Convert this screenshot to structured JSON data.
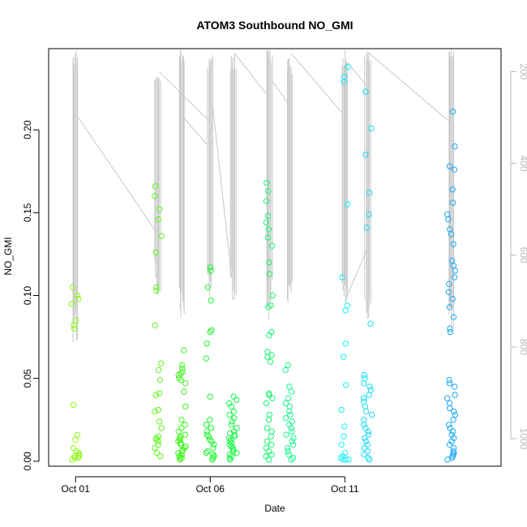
{
  "chart_data": {
    "type": "scatter",
    "title": "ATOM3 Southbound NO_GMI",
    "xlabel": "Date",
    "ylabel": "NO_GMI",
    "x_axis": {
      "type": "date-days",
      "range_days_from_oct01": [
        -1.0,
        15.8
      ],
      "ticks": [
        {
          "day": 0,
          "label": "Oct 01"
        },
        {
          "day": 5,
          "label": "Oct 06"
        },
        {
          "day": 10,
          "label": "Oct 11"
        }
      ]
    },
    "y_axis": {
      "range": [
        -0.003,
        0.249
      ],
      "ticks": [
        0.0,
        0.05,
        0.1,
        0.15,
        0.2
      ],
      "tick_labels": [
        "0.00",
        "0.05",
        "0.10",
        "0.15",
        "0.20"
      ]
    },
    "y2_axis": {
      "label_color": "#b8b8b8",
      "reversed": true,
      "range": [
        1060,
        150
      ],
      "ticks": [
        200,
        400,
        600,
        800,
        1000
      ],
      "tick_labels": [
        "200",
        "400",
        "600",
        "800",
        "1000"
      ],
      "series": "pressure profile (gray line)"
    },
    "grid": false,
    "legend": "none",
    "color_scale": "hue by day (green to blue)",
    "point_clusters": [
      {
        "day": 0.0,
        "color": "#8ff51a",
        "values": [
          0.105,
          0.1,
          0.098,
          0.095,
          0.085,
          0.082,
          0.08,
          0.034,
          0.016,
          0.013,
          0.008,
          0.006,
          0.005,
          0.004,
          0.003,
          0.003,
          0.002,
          0.002,
          0.001
        ]
      },
      {
        "day": 3.05,
        "color": "#5cf51a",
        "values": [
          0.166,
          0.16,
          0.152,
          0.146,
          0.136,
          0.126,
          0.105,
          0.103,
          0.082,
          0.059,
          0.055,
          0.049,
          0.041,
          0.04,
          0.031,
          0.03,
          0.024,
          0.02,
          0.015,
          0.014,
          0.013,
          0.012,
          0.01,
          0.008,
          0.005,
          0.003
        ]
      },
      {
        "day": 3.95,
        "color": "#3cf51a",
        "values": [
          0.067,
          0.058,
          0.056,
          0.054,
          0.053,
          0.052,
          0.05,
          0.049,
          0.047,
          0.042,
          0.033,
          0.025,
          0.022,
          0.02,
          0.018,
          0.016,
          0.015,
          0.014,
          0.013,
          0.012,
          0.011,
          0.01,
          0.009,
          0.008,
          0.007,
          0.006,
          0.005,
          0.004,
          0.003,
          0.002,
          0.002,
          0.001
        ]
      },
      {
        "day": 5.0,
        "color": "#1af52c",
        "values": [
          0.117,
          0.115,
          0.105,
          0.097,
          0.079,
          0.078,
          0.071,
          0.062,
          0.039,
          0.025,
          0.022,
          0.02,
          0.018,
          0.016,
          0.015,
          0.013,
          0.012,
          0.01,
          0.008,
          0.006,
          0.005,
          0.004,
          0.003,
          0.002,
          0.001
        ]
      },
      {
        "day": 5.85,
        "color": "#1af548",
        "values": [
          0.039,
          0.037,
          0.035,
          0.033,
          0.03,
          0.028,
          0.026,
          0.024,
          0.022,
          0.02,
          0.018,
          0.017,
          0.016,
          0.015,
          0.014,
          0.013,
          0.012,
          0.011,
          0.01,
          0.009,
          0.008,
          0.007,
          0.006,
          0.005,
          0.004,
          0.003,
          0.002,
          0.001
        ]
      },
      {
        "day": 7.2,
        "color": "#1af570",
        "values": [
          0.168,
          0.163,
          0.157,
          0.148,
          0.144,
          0.14,
          0.135,
          0.13,
          0.12,
          0.113,
          0.1,
          0.094,
          0.093,
          0.078,
          0.076,
          0.066,
          0.064,
          0.063,
          0.06,
          0.041,
          0.04,
          0.038,
          0.035,
          0.028,
          0.025,
          0.02,
          0.018,
          0.015,
          0.012,
          0.01,
          0.008,
          0.006,
          0.004,
          0.003,
          0.001
        ]
      },
      {
        "day": 7.95,
        "color": "#1af590",
        "values": [
          0.058,
          0.055,
          0.045,
          0.042,
          0.038,
          0.035,
          0.033,
          0.03,
          0.028,
          0.026,
          0.024,
          0.022,
          0.02,
          0.018,
          0.016,
          0.014,
          0.012,
          0.01,
          0.008,
          0.006,
          0.004,
          0.002,
          0.001
        ]
      },
      {
        "day": 10.0,
        "color": "#1af0f5",
        "values": [
          0.238,
          0.232,
          0.229,
          0.155,
          0.111,
          0.094,
          0.091,
          0.071,
          0.063,
          0.046,
          0.031,
          0.021,
          0.015,
          0.01,
          0.005,
          0.003,
          0.002,
          0.001,
          0.001,
          0.001
        ]
      },
      {
        "day": 10.85,
        "color": "#1adaf5",
        "values": [
          0.223,
          0.201,
          0.185,
          0.162,
          0.149,
          0.141,
          0.083,
          0.052,
          0.05,
          0.047,
          0.045,
          0.043,
          0.04,
          0.038,
          0.036,
          0.033,
          0.03,
          0.028,
          0.025,
          0.022,
          0.02,
          0.018,
          0.016,
          0.014,
          0.012,
          0.01,
          0.008,
          0.006,
          0.004,
          0.002,
          0.001
        ]
      },
      {
        "day": 13.95,
        "color": "#1aa8f5",
        "values": [
          0.211,
          0.19,
          0.178,
          0.176,
          0.164,
          0.156,
          0.149,
          0.146,
          0.14,
          0.137,
          0.131,
          0.121,
          0.118,
          0.115,
          0.111,
          0.107,
          0.102,
          0.098,
          0.093,
          0.087,
          0.08,
          0.078,
          0.049,
          0.047,
          0.045,
          0.04,
          0.038,
          0.035,
          0.032,
          0.03,
          0.028,
          0.025,
          0.022,
          0.02,
          0.018,
          0.016,
          0.014,
          0.012,
          0.01,
          0.008,
          0.006,
          0.005,
          0.004,
          0.003,
          0.002,
          0.001
        ]
      }
    ],
    "pressure_profiles": [
      {
        "day": 0.0,
        "p_min": 150,
        "p_max": 800
      },
      {
        "day": 3.05,
        "p_min": 200,
        "p_max": 700
      },
      {
        "day": 3.95,
        "p_min": 150,
        "p_max": 740
      },
      {
        "day": 5.0,
        "p_min": 160,
        "p_max": 720
      },
      {
        "day": 5.85,
        "p_min": 160,
        "p_max": 700
      },
      {
        "day": 7.2,
        "p_min": 150,
        "p_max": 740
      },
      {
        "day": 7.95,
        "p_min": 170,
        "p_max": 720
      },
      {
        "day": 10.0,
        "p_min": 150,
        "p_max": 740
      },
      {
        "day": 10.85,
        "p_min": 150,
        "p_max": 740
      },
      {
        "day": 13.95,
        "p_min": 150,
        "p_max": 760
      }
    ],
    "pressure_transits": [
      [
        0.1,
        300,
        3.0,
        550
      ],
      [
        3.1,
        200,
        5.0,
        310
      ],
      [
        5.1,
        280,
        5.8,
        650
      ],
      [
        4.0,
        300,
        4.9,
        360
      ],
      [
        5.9,
        160,
        7.1,
        250
      ],
      [
        7.3,
        220,
        7.9,
        270
      ],
      [
        8.0,
        160,
        9.9,
        290
      ],
      [
        10.1,
        180,
        10.8,
        230
      ],
      [
        10.9,
        160,
        13.9,
        310
      ],
      [
        10.0,
        700,
        10.8,
        590
      ]
    ]
  }
}
